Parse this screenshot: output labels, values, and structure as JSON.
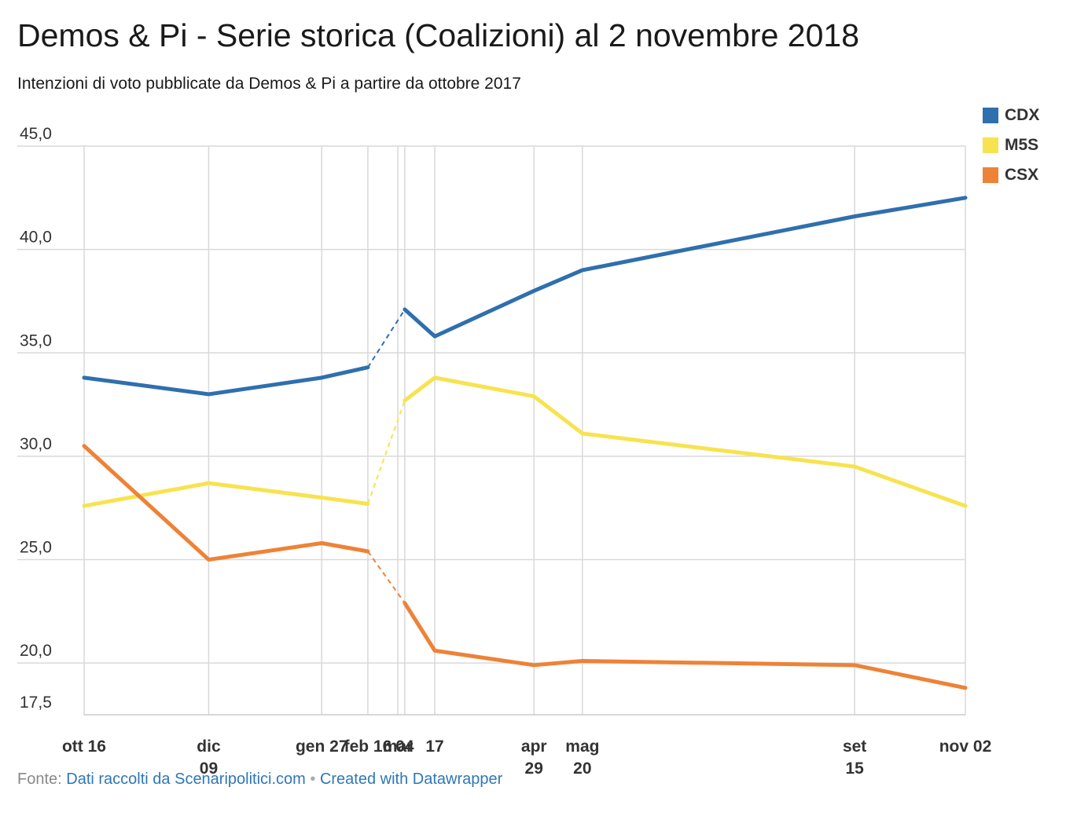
{
  "chart_data": {
    "type": "line",
    "title": "Demos & Pi - Serie storica (Coalizioni) al 2 novembre 2018",
    "subtitle": "Intenzioni di voto pubblicate da Demos & Pi a partire da ottobre 2017",
    "x": [
      "2017-10-16",
      "2017-12-09",
      "2018-01-27",
      "2018-02-16",
      "2018-03-01",
      "2018-03-04",
      "2018-03-17",
      "2018-04-29",
      "2018-05-20",
      "2018-09-15",
      "2018-11-02"
    ],
    "x_tick_labels": [
      {
        "date": "2017-10-16",
        "line1": "ott 16",
        "line2": ""
      },
      {
        "date": "2017-12-09",
        "line1": "dic",
        "line2": "09"
      },
      {
        "date": "2018-01-27",
        "line1": "gen 27",
        "line2": ""
      },
      {
        "date": "2018-02-16",
        "line1": "feb 16",
        "line2": ""
      },
      {
        "date": "2018-03-01",
        "line1": "mar",
        "line2": ""
      },
      {
        "date": "2018-03-04",
        "line1": "04",
        "line2": ""
      },
      {
        "date": "2018-03-17",
        "line1": "17",
        "line2": ""
      },
      {
        "date": "2018-04-29",
        "line1": "apr",
        "line2": "29"
      },
      {
        "date": "2018-05-20",
        "line1": "mag",
        "line2": "20"
      },
      {
        "date": "2018-09-15",
        "line1": "set",
        "line2": "15"
      },
      {
        "date": "2018-11-02",
        "line1": "nov 02",
        "line2": ""
      }
    ],
    "xlim": [
      "2017-10-16",
      "2018-11-02"
    ],
    "ylim": [
      17.5,
      45.0
    ],
    "y_ticks": [
      {
        "value": 45.0,
        "label": "45,0"
      },
      {
        "value": 40.0,
        "label": "40,0"
      },
      {
        "value": 35.0,
        "label": "35,0"
      },
      {
        "value": 30.0,
        "label": "30,0"
      },
      {
        "value": 25.0,
        "label": "25,0"
      },
      {
        "value": 20.0,
        "label": "20,0"
      },
      {
        "value": 17.5,
        "label": "17,5"
      }
    ],
    "series": [
      {
        "name": "CDX",
        "color": "#2f6fae",
        "points": [
          {
            "x": "2017-10-16",
            "y": 33.8
          },
          {
            "x": "2017-12-09",
            "y": 33.0
          },
          {
            "x": "2018-01-27",
            "y": 33.8
          },
          {
            "x": "2018-02-16",
            "y": 34.3
          },
          {
            "x": "2018-03-04",
            "y": 37.1
          },
          {
            "x": "2018-03-17",
            "y": 35.8
          },
          {
            "x": "2018-04-29",
            "y": 38.0
          },
          {
            "x": "2018-05-20",
            "y": 39.0
          },
          {
            "x": "2018-09-15",
            "y": 41.6
          },
          {
            "x": "2018-11-02",
            "y": 42.5
          }
        ]
      },
      {
        "name": "M5S",
        "color": "#f7e34f",
        "points": [
          {
            "x": "2017-10-16",
            "y": 27.6
          },
          {
            "x": "2017-12-09",
            "y": 28.7
          },
          {
            "x": "2018-01-27",
            "y": 28.0
          },
          {
            "x": "2018-02-16",
            "y": 27.7
          },
          {
            "x": "2018-03-04",
            "y": 32.7
          },
          {
            "x": "2018-03-17",
            "y": 33.8
          },
          {
            "x": "2018-04-29",
            "y": 32.9
          },
          {
            "x": "2018-05-20",
            "y": 31.1
          },
          {
            "x": "2018-09-15",
            "y": 29.5
          },
          {
            "x": "2018-11-02",
            "y": 27.6
          }
        ]
      },
      {
        "name": "CSX",
        "color": "#ee8237",
        "points": [
          {
            "x": "2017-10-16",
            "y": 30.5
          },
          {
            "x": "2017-12-09",
            "y": 25.0
          },
          {
            "x": "2018-01-27",
            "y": 25.8
          },
          {
            "x": "2018-02-16",
            "y": 25.4
          },
          {
            "x": "2018-03-04",
            "y": 22.9
          },
          {
            "x": "2018-03-17",
            "y": 20.6
          },
          {
            "x": "2018-04-29",
            "y": 19.9
          },
          {
            "x": "2018-05-20",
            "y": 20.1
          },
          {
            "x": "2018-09-15",
            "y": 19.9
          },
          {
            "x": "2018-11-02",
            "y": 18.8
          }
        ]
      }
    ],
    "dashed_between": [
      "2018-02-16",
      "2018-03-04"
    ],
    "grid": true,
    "legend_position": "top-right"
  },
  "legend": [
    {
      "label": "CDX",
      "color": "#2f6fae"
    },
    {
      "label": "M5S",
      "color": "#f7e34f"
    },
    {
      "label": "CSX",
      "color": "#ee8237"
    }
  ],
  "footer": {
    "prefix": "Fonte: ",
    "source_link": "Dati raccolti da Scenaripolitici.com",
    "separator": " • ",
    "credit_link": "Created with Datawrapper"
  }
}
